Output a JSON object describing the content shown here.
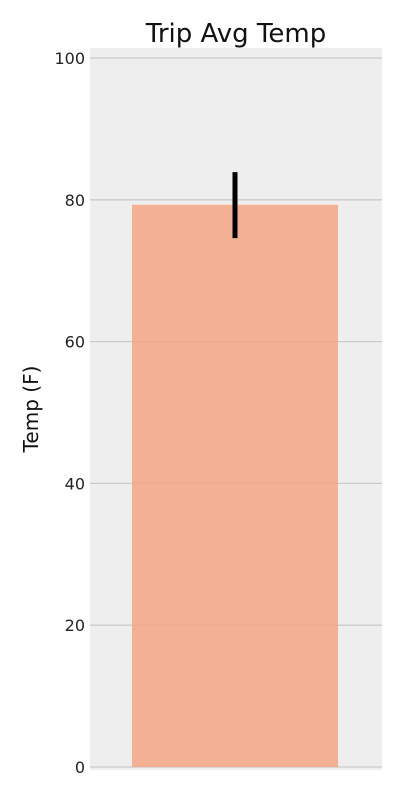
{
  "chart_data": {
    "type": "bar",
    "title": "Trip Avg Temp",
    "xlabel": "",
    "ylabel": "Temp (F)",
    "categories": [
      ""
    ],
    "values": [
      79.3
    ],
    "error": {
      "lower": 74.6,
      "upper": 83.9
    },
    "ylim": [
      0,
      100
    ],
    "yticks": [
      0,
      20,
      40,
      60,
      80,
      100
    ],
    "grid": "horizontal",
    "bar_color": "#f4a582",
    "error_bar_color": "#000000",
    "plot_background": "#eeeeee",
    "grid_color": "#cbcbcb"
  }
}
